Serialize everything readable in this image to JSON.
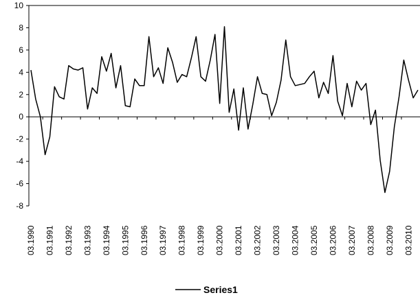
{
  "chart_data": {
    "type": "line",
    "title": "",
    "xlabel": "",
    "ylabel": "",
    "ylim": [
      -8,
      10
    ],
    "y_ticks": [
      -8,
      -6,
      -4,
      -2,
      0,
      2,
      4,
      6,
      8,
      10
    ],
    "grid": false,
    "legend_position": "bottom",
    "x_tick_labels": [
      "03.1990",
      "03.1991",
      "03.1992",
      "03.1993",
      "03.1994",
      "03.1995",
      "03.1996",
      "03.1997",
      "03.1998",
      "03.1999",
      "03.2000",
      "03.2001",
      "03.2002",
      "03.2003",
      "03.2004",
      "03.2005",
      "03.2006",
      "03.2007",
      "03.2008",
      "03.2009",
      "03.2010"
    ],
    "series": [
      {
        "name": "Series1",
        "color": "#000000",
        "values": [
          4.2,
          1.6,
          0.0,
          -3.4,
          -1.8,
          2.7,
          1.8,
          1.6,
          4.6,
          4.3,
          4.2,
          4.4,
          0.7,
          2.6,
          2.1,
          5.4,
          4.1,
          5.7,
          2.6,
          4.6,
          1.0,
          0.9,
          3.4,
          2.8,
          2.8,
          7.2,
          3.6,
          4.4,
          3.0,
          6.2,
          4.9,
          3.1,
          3.8,
          3.6,
          5.3,
          7.2,
          3.6,
          3.2,
          5.1,
          7.4,
          1.2,
          8.1,
          0.4,
          2.5,
          -1.2,
          2.6,
          -1.1,
          1.1,
          3.6,
          2.1,
          2.0,
          0.1,
          1.3,
          3.3,
          6.9,
          3.6,
          2.8,
          2.9,
          3.0,
          3.6,
          4.1,
          1.7,
          3.1,
          2.1,
          5.5,
          1.4,
          0.1,
          3.0,
          0.9,
          3.2,
          2.4,
          3.0,
          -0.7,
          0.6,
          -3.9,
          -6.8,
          -4.9,
          -0.9,
          1.8,
          5.1,
          3.3,
          1.7,
          2.4
        ]
      }
    ]
  }
}
